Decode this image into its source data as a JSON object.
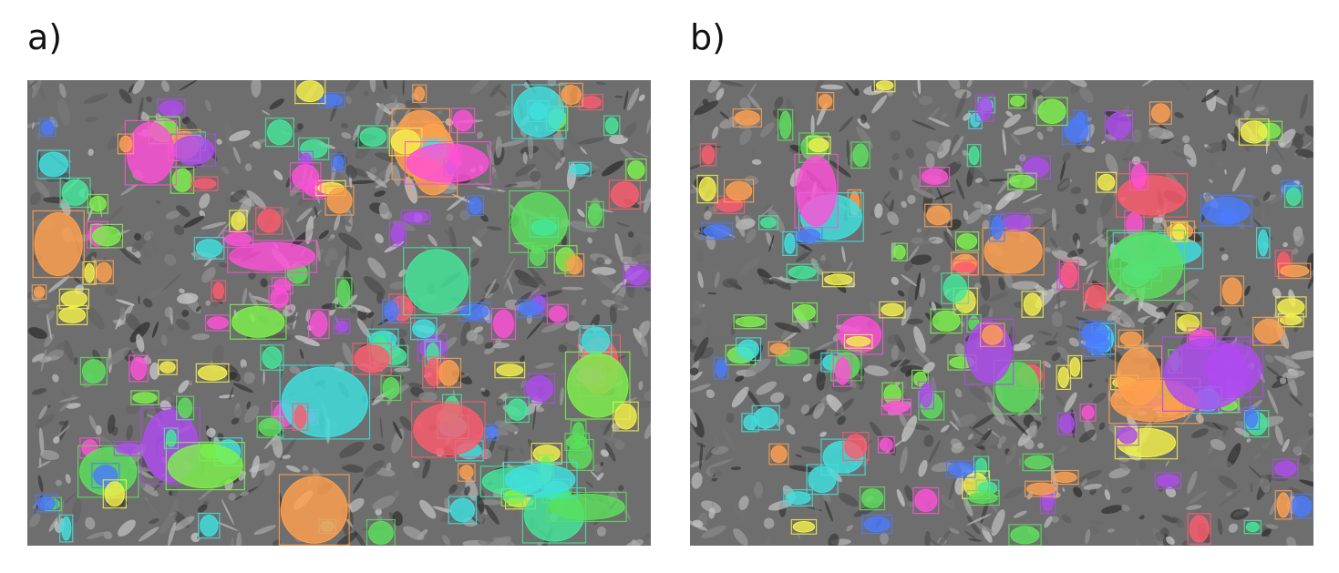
{
  "figure": {
    "panels": [
      {
        "id": "a",
        "label": "a)"
      },
      {
        "id": "b",
        "label": "b)"
      }
    ]
  },
  "palette": [
    "#ff4fd8",
    "#ff5a6e",
    "#7df24a",
    "#3ee0e0",
    "#4a7bff",
    "#ffa04d",
    "#f4f04a",
    "#b04af2",
    "#43e89a",
    "#5ae05a"
  ]
}
